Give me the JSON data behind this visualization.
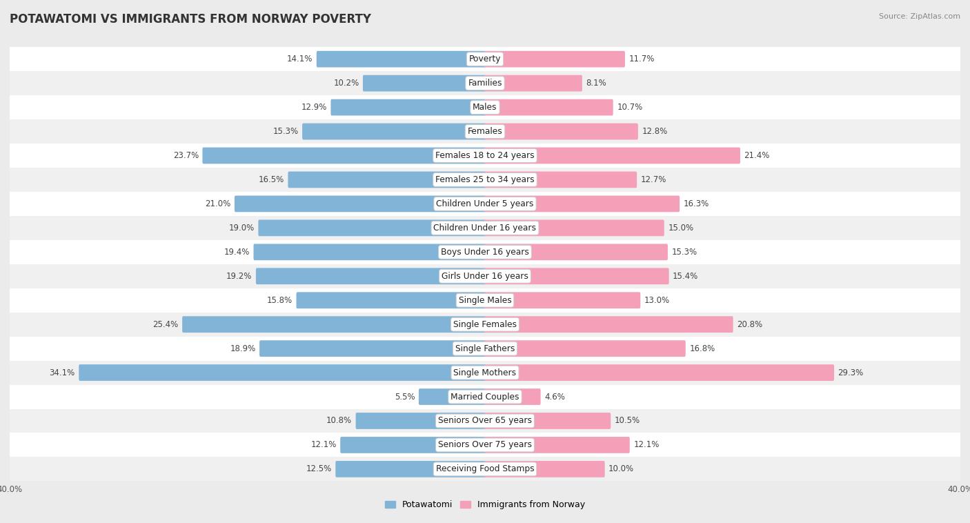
{
  "title": "POTAWATOMI VS IMMIGRANTS FROM NORWAY POVERTY",
  "source": "Source: ZipAtlas.com",
  "categories": [
    "Poverty",
    "Families",
    "Males",
    "Females",
    "Females 18 to 24 years",
    "Females 25 to 34 years",
    "Children Under 5 years",
    "Children Under 16 years",
    "Boys Under 16 years",
    "Girls Under 16 years",
    "Single Males",
    "Single Females",
    "Single Fathers",
    "Single Mothers",
    "Married Couples",
    "Seniors Over 65 years",
    "Seniors Over 75 years",
    "Receiving Food Stamps"
  ],
  "left_values": [
    14.1,
    10.2,
    12.9,
    15.3,
    23.7,
    16.5,
    21.0,
    19.0,
    19.4,
    19.2,
    15.8,
    25.4,
    18.9,
    34.1,
    5.5,
    10.8,
    12.1,
    12.5
  ],
  "right_values": [
    11.7,
    8.1,
    10.7,
    12.8,
    21.4,
    12.7,
    16.3,
    15.0,
    15.3,
    15.4,
    13.0,
    20.8,
    16.8,
    29.3,
    4.6,
    10.5,
    12.1,
    10.0
  ],
  "left_color": "#82b4d8",
  "right_color": "#f4a0b8",
  "axis_max": 40.0,
  "bg_color": "#ebebeb",
  "row_even_color": "#ffffff",
  "row_odd_color": "#f0f0f0",
  "legend_left": "Potawatomi",
  "legend_right": "Immigrants from Norway",
  "title_fontsize": 12,
  "label_fontsize": 8.8,
  "value_fontsize": 8.5,
  "tick_fontsize": 8.5
}
